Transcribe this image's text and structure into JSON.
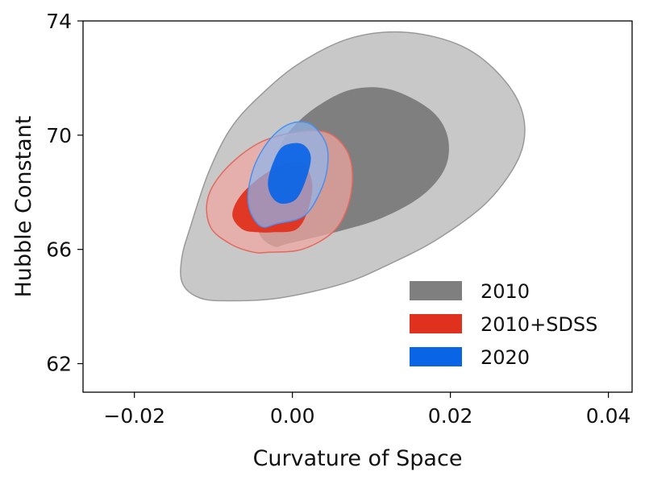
{
  "chart_data": {
    "type": "contour",
    "title": "",
    "xlabel": "Curvature of Space",
    "ylabel": "Hubble Constant",
    "xlim": [
      -0.0265,
      0.043
    ],
    "ylim": [
      61.0,
      74.0
    ],
    "xticks": [
      -0.02,
      0.0,
      0.02,
      0.04
    ],
    "xtick_labels": [
      "−0.02",
      "0.00",
      "0.02",
      "0.04"
    ],
    "yticks": [
      62,
      66,
      70,
      74
    ],
    "ytick_labels": [
      "62",
      "66",
      "70",
      "74"
    ],
    "grid": false,
    "legend_position": "bottom-right",
    "series": [
      {
        "name": "2010",
        "color": "#7f7f7f",
        "outer_color": "#c8c8c8",
        "contours": [
          {
            "level": "outer",
            "points": [
              [
                -0.008,
                64.2
              ],
              [
                -0.0016,
                64.3
              ],
              [
                0.0064,
                64.8
              ],
              [
                0.0124,
                65.5
              ],
              [
                0.0186,
                66.4
              ],
              [
                0.0248,
                67.7
              ],
              [
                0.0288,
                69.3
              ],
              [
                0.0292,
                70.7
              ],
              [
                0.0266,
                72.0
              ],
              [
                0.0216,
                73.1
              ],
              [
                0.0145,
                73.6
              ],
              [
                0.0074,
                73.4
              ],
              [
                0.0008,
                72.5
              ],
              [
                -0.0044,
                71.3
              ],
              [
                -0.0079,
                70.2
              ],
              [
                -0.0106,
                68.7
              ],
              [
                -0.0129,
                66.8
              ],
              [
                -0.014,
                65.7
              ],
              [
                -0.0139,
                64.8
              ],
              [
                -0.0117,
                64.3
              ]
            ]
          },
          {
            "level": "inner",
            "points": [
              [
                -0.0006,
                66.2
              ],
              [
                0.0054,
                66.6
              ],
              [
                0.0113,
                67.1
              ],
              [
                0.0165,
                67.9
              ],
              [
                0.0194,
                68.9
              ],
              [
                0.0196,
                70.0
              ],
              [
                0.0174,
                70.9
              ],
              [
                0.0124,
                71.6
              ],
              [
                0.0075,
                71.6
              ],
              [
                0.0031,
                71.0
              ],
              [
                -0.0002,
                70.2
              ],
              [
                -0.0019,
                69.4
              ],
              [
                -0.0031,
                68.3
              ],
              [
                -0.0043,
                67.2
              ],
              [
                -0.0041,
                66.5
              ],
              [
                -0.0023,
                66.1
              ]
            ]
          }
        ]
      },
      {
        "name": "2010+SDSS",
        "color": "#e0301e",
        "outer_color": "#f0a5a0",
        "contours": [
          {
            "level": "outer",
            "points": [
              [
                -0.003,
                65.9
              ],
              [
                0.0012,
                66.0
              ],
              [
                0.0051,
                66.6
              ],
              [
                0.007,
                67.5
              ],
              [
                0.0076,
                68.6
              ],
              [
                0.0068,
                69.5
              ],
              [
                0.0043,
                70.1
              ],
              [
                0.0003,
                70.1
              ],
              [
                -0.0044,
                69.7
              ],
              [
                -0.0085,
                68.8
              ],
              [
                -0.0107,
                67.8
              ],
              [
                -0.0104,
                66.8
              ],
              [
                -0.0079,
                66.2
              ],
              [
                -0.0049,
                65.9
              ]
            ]
          },
          {
            "level": "inner",
            "points": [
              [
                -0.0025,
                66.6
              ],
              [
                0.0005,
                66.7
              ],
              [
                0.002,
                67.4
              ],
              [
                0.0025,
                68.3
              ],
              [
                0.0014,
                69.0
              ],
              [
                -0.0009,
                69.0
              ],
              [
                -0.0037,
                68.6
              ],
              [
                -0.0065,
                67.9
              ],
              [
                -0.0076,
                67.2
              ],
              [
                -0.0063,
                66.7
              ],
              [
                -0.0043,
                66.6
              ]
            ]
          }
        ]
      },
      {
        "name": "2020",
        "color": "#0a64e6",
        "outer_color": "#8fb4ea",
        "contours": [
          {
            "level": "outer",
            "points": [
              [
                -0.002,
                66.9
              ],
              [
                0.0016,
                67.2
              ],
              [
                0.0038,
                68.2
              ],
              [
                0.0045,
                69.1
              ],
              [
                0.0041,
                69.8
              ],
              [
                0.0022,
                70.4
              ],
              [
                -0.0003,
                70.4
              ],
              [
                -0.0027,
                69.9
              ],
              [
                -0.0047,
                69.0
              ],
              [
                -0.0056,
                68.0
              ],
              [
                -0.0053,
                67.3
              ],
              [
                -0.0039,
                66.8
              ]
            ]
          },
          {
            "level": "inner",
            "points": [
              [
                -0.0012,
                67.6
              ],
              [
                0.0006,
                67.8
              ],
              [
                0.0019,
                68.6
              ],
              [
                0.0023,
                69.3
              ],
              [
                0.0011,
                69.7
              ],
              [
                -0.0012,
                69.6
              ],
              [
                -0.0025,
                69.0
              ],
              [
                -0.0031,
                68.3
              ],
              [
                -0.0025,
                67.8
              ]
            ]
          }
        ]
      }
    ]
  }
}
